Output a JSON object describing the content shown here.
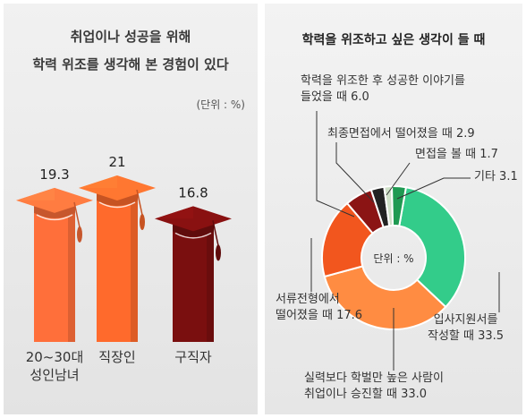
{
  "chart_data": [
    {
      "type": "bar",
      "title_line1": "취업이나 성공을 위해",
      "title_line2": "학력 위조를 생각해 본 경험이 있다",
      "unit": "(단위 : %)",
      "categories": [
        [
          "20~30대",
          "성인남녀"
        ],
        [
          "직장인"
        ],
        [
          "구직자"
        ]
      ],
      "values": [
        19.3,
        21,
        16.8
      ],
      "value_labels": [
        "19.3",
        "21",
        "16.8"
      ],
      "colors": [
        "#ff6f3a",
        "#ff6a2c",
        "#7a0f0f"
      ]
    },
    {
      "type": "pie",
      "title": "학력을 위조하고 싶은 생각이 들 때",
      "center_label": "단위 : %",
      "slices": [
        {
          "value": 33.5,
          "color": "#33cc8a",
          "label": [
            "입사지원서를",
            "작성할 때 33.5"
          ]
        },
        {
          "value": 33.0,
          "color": "#ff8c42",
          "label": [
            "실력보다 학벌만 높은 사람이",
            "취업이나 승진할 때 33.0"
          ]
        },
        {
          "value": 17.6,
          "color": "#f2561e",
          "label": [
            "서류전형에서",
            "떨어졌을 때 17.6"
          ]
        },
        {
          "value": 6.0,
          "color": "#8b1414",
          "label": [
            "학력을 위조한 후 성공한 이야기를",
            "들었을 때 6.0"
          ]
        },
        {
          "value": 2.9,
          "color": "#222222",
          "label": [
            "최종면접에서 떨어졌을 때 2.9"
          ]
        },
        {
          "value": 1.7,
          "color": "#cfe0c8",
          "label": [
            "면접을 볼 때 1.7"
          ]
        },
        {
          "value": 3.1,
          "color": "#1f9a52",
          "label": [
            "기타 3.1"
          ]
        }
      ]
    }
  ]
}
